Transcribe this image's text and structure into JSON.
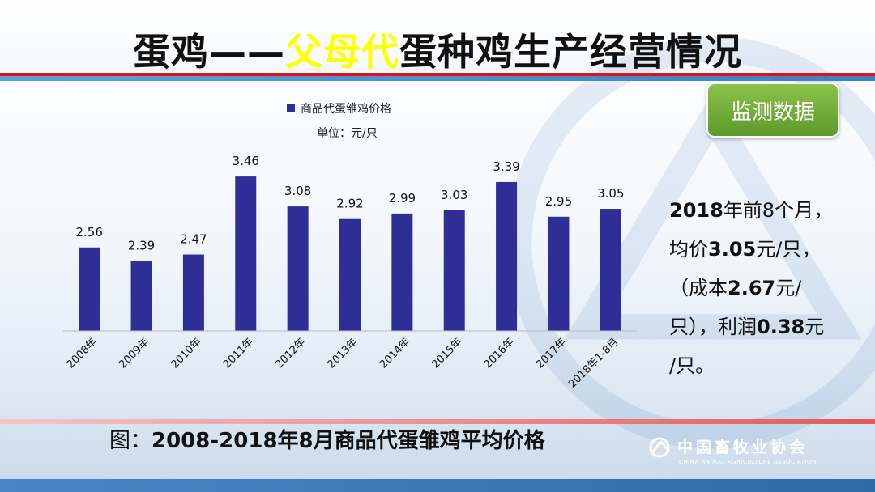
{
  "title": {
    "prefix": "蛋鸡——",
    "highlight": "父母代",
    "suffix": "蛋种鸡生产经营情况"
  },
  "badge": "监测数据",
  "summary": {
    "line1_bold": "2018",
    "line1_rest": "年前8个月，",
    "line2_a": "均价",
    "line2_bold": "3.05",
    "line2_b": "元/只，",
    "line3_a": "（成本",
    "line3_bold": "2.67",
    "line3_b": "元/",
    "line4_a": "只），利润",
    "line4_bold": "0.38",
    "line4_b": "元",
    "line5": "/只。"
  },
  "caption": {
    "label": "图：",
    "text": "2008-2018年8月商品代蛋雏鸡平均价格"
  },
  "logo": {
    "cn": "中国畜牧业协会",
    "en": "CHINA ANIMAL AGRICULTURE ASSOCIATION"
  },
  "colors": {
    "bar": "#2e2e96",
    "accent_red": "#d9141c",
    "highlight": "#ffff00",
    "badge_green": "#6aa82e"
  },
  "chart_data": {
    "type": "bar",
    "categories": [
      "2008年",
      "2009年",
      "2010年",
      "2011年",
      "2012年",
      "2013年",
      "2014年",
      "2015年",
      "2016年",
      "2017年",
      "2018年1-8月"
    ],
    "series": [
      {
        "name": "商品代蛋雏鸡价格",
        "values": [
          2.56,
          2.39,
          2.47,
          3.46,
          3.08,
          2.92,
          2.99,
          3.03,
          3.39,
          2.95,
          3.05
        ]
      }
    ],
    "unit_label": "单位：元/只",
    "ylim": [
      1.5,
      3.8
    ],
    "grid": false,
    "legend": "top-center"
  }
}
